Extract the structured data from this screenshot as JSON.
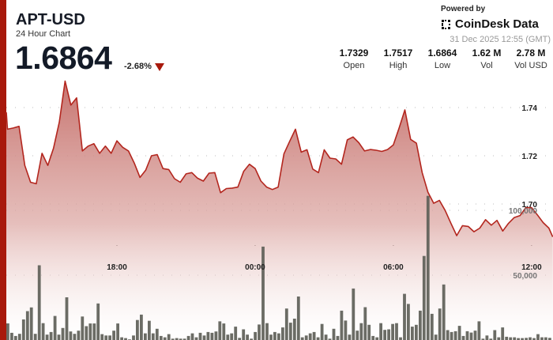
{
  "header": {
    "title": "APT-USD",
    "subtitle": "24 Hour Chart",
    "price": "1.6864",
    "change": "-2.68%",
    "change_direction": "down",
    "powered_by": "Powered by",
    "brand": "CoinDesk Data",
    "timestamp": "31 Dec 2025 12:55 (GMT)"
  },
  "stats": [
    {
      "value": "1.7329",
      "label": "Open"
    },
    {
      "value": "1.7517",
      "label": "High"
    },
    {
      "value": "1.6864",
      "label": "Low"
    },
    {
      "value": "1.62 M",
      "label": "Vol"
    },
    {
      "value": "2.78 M",
      "label": "Vol USD"
    }
  ],
  "colors": {
    "accent": "#a8190c",
    "line": "#b3261e",
    "volume": "#5e5f58",
    "fill_top": "#c97a76"
  },
  "chart_data": {
    "type": "area",
    "price_axis": {
      "ticks": [
        "1.74",
        "1.72",
        "1.70"
      ],
      "tick_values": [
        1.74,
        1.72,
        1.7
      ]
    },
    "volume_axis": {
      "ticks": [
        "100,000",
        "50,000"
      ],
      "tick_values": [
        100000,
        50000
      ]
    },
    "time_axis": {
      "ticks": [
        "18:00",
        "00:00",
        "06:00",
        "12:00"
      ]
    },
    "grid": true,
    "series_price": {
      "x": [
        "13:00",
        "13:15",
        "13:30",
        "13:45",
        "14:00",
        "14:15",
        "14:30",
        "14:45",
        "15:00",
        "15:15",
        "15:30",
        "15:45",
        "16:00",
        "16:15",
        "16:30",
        "16:45",
        "17:00",
        "17:15",
        "17:30",
        "17:45",
        "18:00",
        "18:15",
        "18:30",
        "18:45",
        "19:00",
        "19:15",
        "19:30",
        "19:45",
        "20:00",
        "20:15",
        "20:30",
        "20:45",
        "21:00",
        "21:15",
        "21:30",
        "21:45",
        "22:00",
        "22:15",
        "22:30",
        "22:45",
        "23:00",
        "23:15",
        "23:30",
        "23:45",
        "00:00",
        "00:15",
        "00:30",
        "00:45",
        "01:00",
        "01:15",
        "01:30",
        "01:45",
        "02:00",
        "02:15",
        "02:30",
        "02:45",
        "03:00",
        "03:15",
        "03:30",
        "03:45",
        "04:00",
        "04:15",
        "04:30",
        "04:45",
        "05:00",
        "05:15",
        "05:30",
        "05:45",
        "06:00",
        "06:15",
        "06:30",
        "06:45",
        "07:00",
        "07:15",
        "07:30",
        "07:45",
        "08:00",
        "08:15",
        "08:30",
        "08:45",
        "09:00",
        "09:15",
        "09:30",
        "09:45",
        "10:00",
        "10:15",
        "10:30",
        "10:45",
        "11:00",
        "11:15",
        "11:30",
        "11:45",
        "12:00",
        "12:15",
        "12:30",
        "12:45",
        "12:55"
      ],
      "y": [
        1.738,
        1.731,
        1.7315,
        1.7322,
        1.716,
        1.709,
        1.7084,
        1.721,
        1.716,
        1.7232,
        1.734,
        1.751,
        1.741,
        1.744,
        1.722,
        1.724,
        1.725,
        1.721,
        1.724,
        1.721,
        1.7262,
        1.7235,
        1.722,
        1.717,
        1.711,
        1.714,
        1.72,
        1.7205,
        1.7147,
        1.7143,
        1.7105,
        1.709,
        1.7125,
        1.713,
        1.7107,
        1.7095,
        1.7128,
        1.713,
        1.7047,
        1.7064,
        1.7066,
        1.707,
        1.7135,
        1.7165,
        1.7147,
        1.7095,
        1.707,
        1.706,
        1.707,
        1.7208,
        1.726,
        1.731,
        1.7215,
        1.7225,
        1.7145,
        1.713,
        1.7225,
        1.719,
        1.7187,
        1.7165,
        1.7266,
        1.7278,
        1.7254,
        1.722,
        1.7226,
        1.7223,
        1.7218,
        1.7226,
        1.7245,
        1.7315,
        1.739,
        1.7268,
        1.7252,
        1.713,
        1.7049,
        1.7003,
        1.7015,
        1.6973,
        1.692,
        1.6869,
        1.691,
        1.6907,
        1.6885,
        1.69,
        1.6935,
        1.6912,
        1.6932,
        1.6888,
        1.692,
        1.6944,
        1.6952,
        1.6985,
        1.6985,
        1.6955,
        1.6923,
        1.69,
        1.6864
      ]
    },
    "series_volume": {
      "values": [
        12800,
        5560,
        3090,
        4730,
        15850,
        22230,
        25110,
        4730,
        57620,
        12970,
        4120,
        6170,
        18520,
        4120,
        9260,
        32930,
        6590,
        4730,
        7200,
        18110,
        10700,
        12760,
        12760,
        28190,
        4530,
        3500,
        3500,
        7200,
        12760,
        2060,
        1440,
        500,
        3500,
        15440,
        19550,
        5150,
        14820,
        5150,
        8640,
        3090,
        2060,
        4530,
        1030,
        1440,
        1030,
        1030,
        3090,
        5150,
        2060,
        5560,
        3500,
        6170,
        5560,
        6590,
        14410,
        12760,
        4120,
        5150,
        10290,
        1650,
        8230,
        4120,
        1030,
        6170,
        11940,
        72030,
        12970,
        4120,
        6170,
        5150,
        9670,
        24280,
        13380,
        16460,
        33550,
        2060,
        3500,
        5150,
        6170,
        2060,
        12350,
        4120,
        1030,
        8640,
        3090,
        22640,
        15020,
        4120,
        39720,
        7200,
        12970,
        25310,
        11730,
        3090,
        2060,
        12970,
        7820,
        8230,
        12350,
        12970,
        2060,
        35600,
        27780,
        10290,
        11730,
        22640,
        64830,
        111130,
        20170,
        4120,
        24280,
        42810,
        7610,
        6170,
        6790,
        10910,
        3090,
        6790,
        5760,
        7200,
        14410,
        1030,
        3500,
        1030,
        7610,
        2060,
        9670,
        2470,
        2060,
        2060,
        1440,
        1440,
        1650,
        2060,
        1440,
        4530,
        2060,
        2060,
        1650
      ]
    }
  }
}
